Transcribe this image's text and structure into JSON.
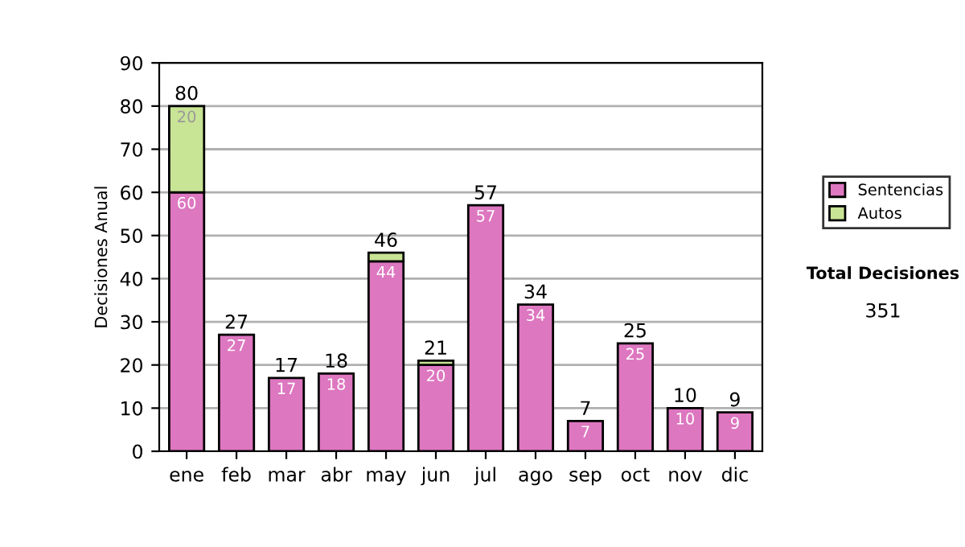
{
  "chart_data": {
    "type": "bar",
    "stacked": true,
    "ylabel": "Decisiones Anual",
    "categories": [
      "ene",
      "feb",
      "mar",
      "abr",
      "may",
      "jun",
      "jul",
      "ago",
      "sep",
      "oct",
      "nov",
      "dic"
    ],
    "series": [
      {
        "name": "Sentencias",
        "color": "#dd77c0",
        "values": [
          60,
          27,
          17,
          18,
          44,
          20,
          57,
          34,
          7,
          25,
          10,
          9
        ],
        "value_labels": [
          "60",
          "27",
          "17",
          "18",
          "44",
          "20",
          "57",
          "34",
          "7",
          "25",
          "10",
          "9"
        ]
      },
      {
        "name": "Autos",
        "color": "#c8e495",
        "values": [
          20,
          null,
          null,
          null,
          2,
          1,
          null,
          null,
          null,
          null,
          null,
          null
        ],
        "value_labels": [
          "20",
          null,
          null,
          null,
          null,
          null,
          null,
          null,
          null,
          null,
          null,
          null
        ]
      }
    ],
    "totals": [
      "80",
      "27",
      "17",
      "18",
      "46",
      "21",
      "57",
      "34",
      "7",
      "25",
      "10",
      "9"
    ],
    "ylim": [
      0,
      90
    ],
    "yticks": [
      0,
      10,
      20,
      30,
      40,
      50,
      60,
      70,
      80,
      90
    ],
    "grid": "y",
    "legend": "right",
    "annotations": [
      "Total Decisiones",
      "351"
    ]
  }
}
